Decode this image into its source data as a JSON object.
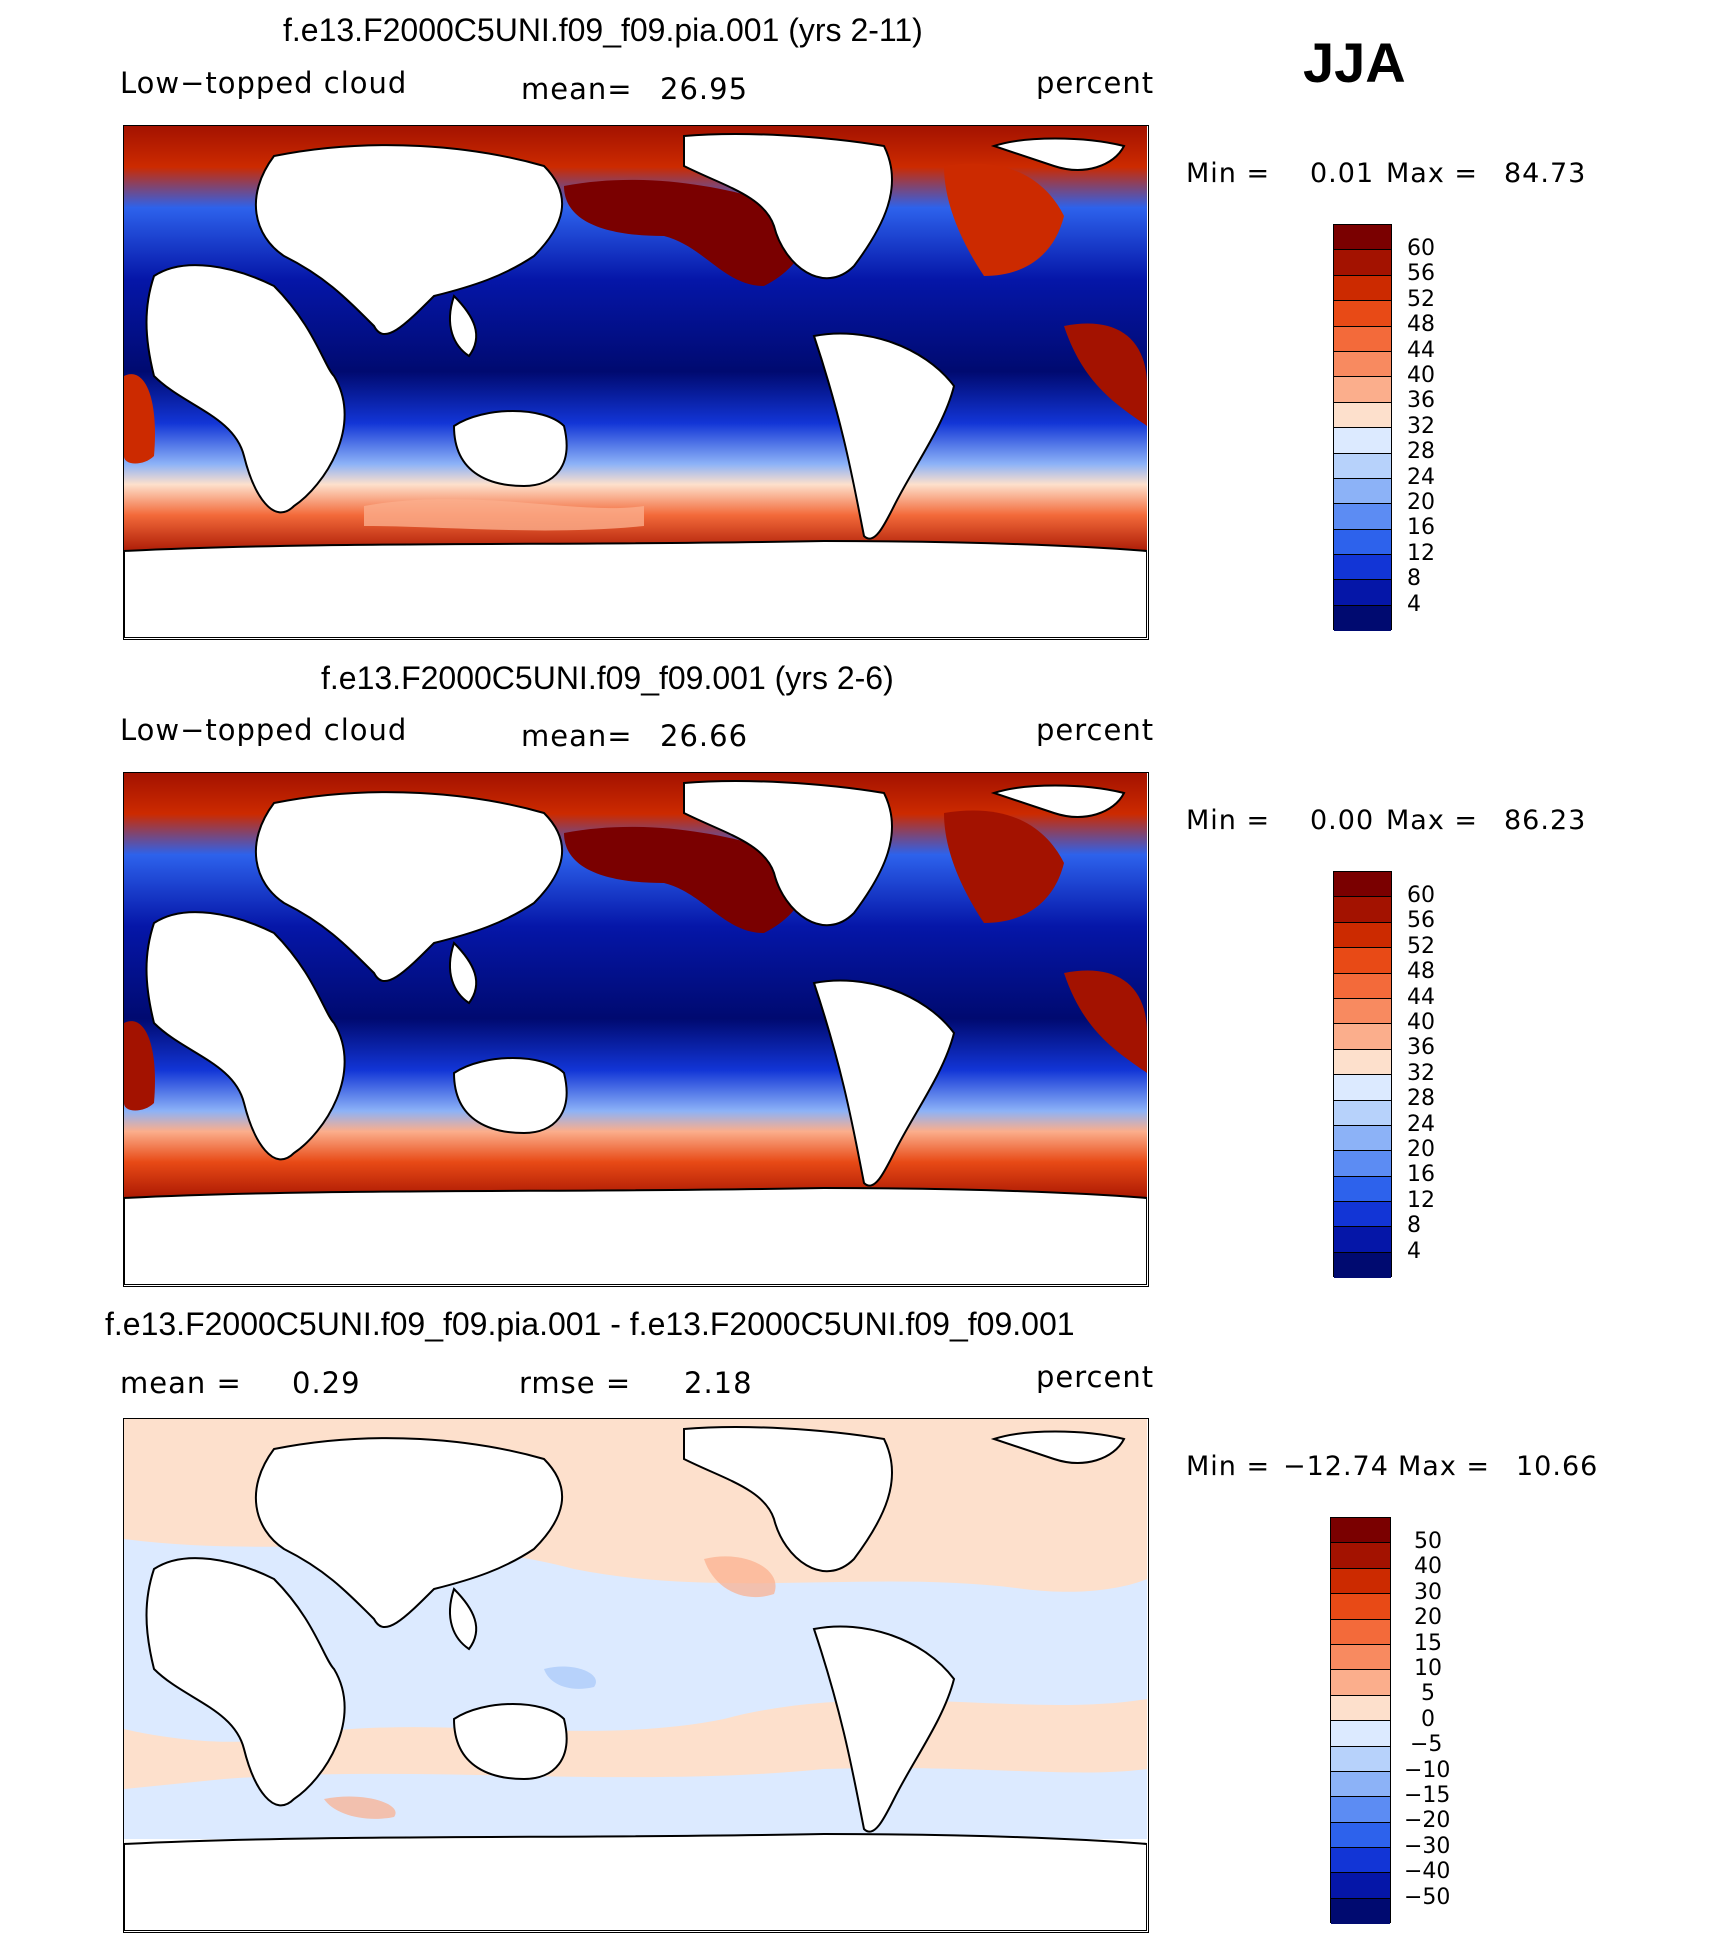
{
  "season": "JJA",
  "panels": [
    {
      "title": "f.e13.F2000C5UNI.f09_f09.pia.001 (yrs 2-11)",
      "left_label": "Low−topped cloud",
      "center_label": "mean=",
      "center_value": "26.95",
      "units": "percent",
      "min_label": "Min =",
      "min_value": "0.01",
      "max_label": "Max =",
      "max_value": "84.73",
      "colorbar_ticks": [
        "60",
        "56",
        "52",
        "48",
        "44",
        "40",
        "36",
        "32",
        "28",
        "24",
        "20",
        "16",
        "12",
        "8",
        "4"
      ]
    },
    {
      "title": "f.e13.F2000C5UNI.f09_f09.001 (yrs 2-6)",
      "left_label": "Low−topped cloud",
      "center_label": "mean=",
      "center_value": "26.66",
      "units": "percent",
      "min_label": "Min =",
      "min_value": "0.00",
      "max_label": "Max =",
      "max_value": "86.23",
      "colorbar_ticks": [
        "60",
        "56",
        "52",
        "48",
        "44",
        "40",
        "36",
        "32",
        "28",
        "24",
        "20",
        "16",
        "12",
        "8",
        "4"
      ]
    },
    {
      "title": "f.e13.F2000C5UNI.f09_f09.pia.001 - f.e13.F2000C5UNI.f09_f09.001",
      "left_label": "mean =",
      "left_value": "0.29",
      "center_label": "rmse =",
      "center_value": "2.18",
      "units": "percent",
      "min_label": "Min =",
      "min_value": "−12.74",
      "max_label": "Max =",
      "max_value": "10.66",
      "colorbar_ticks": [
        "50",
        "40",
        "30",
        "20",
        "15",
        "10",
        "5",
        "0",
        "−5",
        "−10",
        "−15",
        "−20",
        "−30",
        "−40",
        "−50"
      ]
    }
  ],
  "colors": {
    "sequential": [
      "#7a0000",
      "#a31200",
      "#cc2a00",
      "#e84a16",
      "#f36a3a",
      "#f88a60",
      "#fbae8c",
      "#fde0cc",
      "#dceaff",
      "#b7d2fb",
      "#8cb2f7",
      "#5c8cf3",
      "#2d62ec",
      "#1235d6",
      "#0516a8",
      "#000a70"
    ],
    "diverging": [
      "#7a0000",
      "#a31200",
      "#cc2a00",
      "#e84a16",
      "#f36a3a",
      "#f88a60",
      "#fbae8c",
      "#fde0cc",
      "#dceaff",
      "#b7d2fb",
      "#8cb2f7",
      "#5c8cf3",
      "#2d62ec",
      "#1235d6",
      "#0516a8",
      "#000a70"
    ]
  }
}
